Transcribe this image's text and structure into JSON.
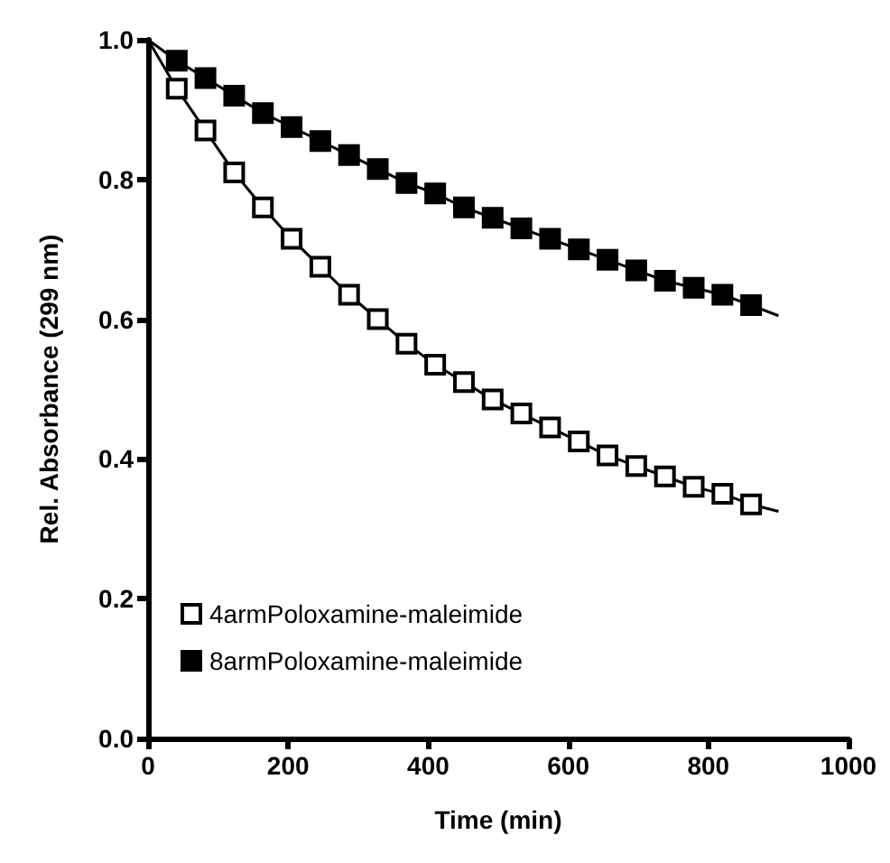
{
  "chart_data": {
    "type": "scatter",
    "xlabel": "Time (min)",
    "ylabel": "Rel. Absorbance (299 nm)",
    "xlim": [
      0,
      1000
    ],
    "xticks": [
      0,
      200,
      400,
      600,
      800,
      1000
    ],
    "ylim": [
      0,
      1.0
    ],
    "yticks": [
      {
        "value": 0,
        "label": "0.0"
      },
      0.2,
      0.4,
      0.6,
      0.8,
      {
        "value": 1,
        "label": "1.0"
      }
    ],
    "grid": false,
    "legend": "bottom left",
    "x": [
      41,
      82,
      123,
      164,
      205,
      246,
      287,
      328,
      369,
      410,
      451,
      492,
      533,
      574,
      615,
      656,
      697,
      738,
      779,
      820,
      861
    ],
    "series": [
      {
        "name": "4armPoloxamine-maleimide",
        "color": "#ffffff",
        "marker": "square",
        "values": [
          0.93,
          0.87,
          0.81,
          0.76,
          0.715,
          0.675,
          0.635,
          0.6,
          0.565,
          0.535,
          0.51,
          0.485,
          0.465,
          0.445,
          0.425,
          0.405,
          0.39,
          0.375,
          0.36,
          0.35,
          0.335
        ]
      },
      {
        "name": "8armPoloxamine-maleimide",
        "color": "#000000",
        "marker": "square",
        "values": [
          0.97,
          0.945,
          0.92,
          0.895,
          0.875,
          0.855,
          0.835,
          0.815,
          0.795,
          0.78,
          0.76,
          0.745,
          0.73,
          0.715,
          0.7,
          0.685,
          0.67,
          0.655,
          0.645,
          0.635,
          0.62
        ]
      },
      {
        "type": "line",
        "color": "#000000",
        "marker": "none",
        "x": [
          0,
          41,
          82,
          123,
          164,
          205,
          246,
          287,
          328,
          369,
          410,
          451,
          492,
          533,
          574,
          615,
          656,
          697,
          738,
          779,
          820,
          861,
          900
        ],
        "values": [
          1.0,
          0.93,
          0.87,
          0.81,
          0.76,
          0.715,
          0.675,
          0.635,
          0.6,
          0.565,
          0.535,
          0.51,
          0.485,
          0.465,
          0.445,
          0.425,
          0.405,
          0.39,
          0.375,
          0.36,
          0.35,
          0.335,
          0.325
        ]
      },
      {
        "type": "line",
        "color": "#000000",
        "marker": "none",
        "x": [
          0,
          41,
          82,
          123,
          164,
          205,
          246,
          287,
          328,
          369,
          410,
          451,
          492,
          533,
          574,
          615,
          656,
          697,
          738,
          779,
          820,
          861,
          900
        ],
        "values": [
          1.0,
          0.97,
          0.945,
          0.92,
          0.895,
          0.875,
          0.855,
          0.835,
          0.815,
          0.795,
          0.78,
          0.76,
          0.745,
          0.73,
          0.715,
          0.7,
          0.685,
          0.67,
          0.655,
          0.645,
          0.635,
          0.62,
          0.605
        ]
      }
    ]
  }
}
